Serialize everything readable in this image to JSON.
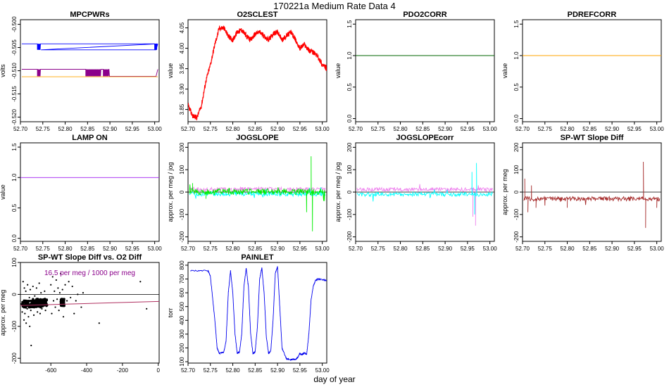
{
  "figure": {
    "title": "170221a   Medium Rate Data 4",
    "xlabel": "day of year"
  },
  "chart_data": [
    {
      "id": "mpcpwrs",
      "type": "line",
      "title": "MPCPWRs",
      "ylabel": "volts",
      "xlim": [
        52.7,
        53.01
      ],
      "ylim": [
        -0.521,
        -0.499
      ],
      "xticks": [
        52.7,
        52.75,
        52.8,
        52.85,
        52.9,
        52.95,
        53.0
      ],
      "yticks": [
        -0.52,
        -0.515,
        -0.51,
        -0.505,
        -0.5
      ],
      "ytick_labels": [
        "-0.520",
        "-0.515",
        "-0.510",
        "-0.505",
        "-0.500"
      ],
      "series": [
        {
          "color": "#0000ff",
          "base": -0.5042,
          "alt": -0.5055,
          "dips": [
            [
              52.738,
              52.745
            ],
            [
              53.0,
              53.005
            ]
          ],
          "up_end": -0.5042
        },
        {
          "color": "#8b008b",
          "base": -0.5097,
          "alt": -0.5112,
          "dips": [
            [
              52.738,
              52.745
            ],
            [
              52.846,
              52.88
            ],
            [
              52.885,
              52.898
            ]
          ],
          "up_end": -0.5097
        },
        {
          "color": "#ffa500",
          "base": -0.5113,
          "alt": -0.5113,
          "dips": [],
          "up_end": -0.5113
        }
      ]
    },
    {
      "id": "o2sclest",
      "type": "line",
      "title": "O2SCLEST",
      "ylabel": "value",
      "xlim": [
        52.7,
        53.01
      ],
      "ylim": [
        3.82,
        4.07
      ],
      "xticks": [
        52.7,
        52.75,
        52.8,
        52.85,
        52.9,
        52.95,
        53.0
      ],
      "yticks": [
        3.85,
        3.9,
        3.95,
        4.0,
        4.05
      ],
      "ytick_labels": [
        "3.85",
        "3.90",
        "3.95",
        "4.00",
        "4.05"
      ],
      "series": [
        {
          "color": "#ff0000",
          "x": [
            52.7,
            52.71,
            52.72,
            52.73,
            52.74,
            52.75,
            52.76,
            52.77,
            52.78,
            52.79,
            52.8,
            52.81,
            52.82,
            52.83,
            52.84,
            52.85,
            52.86,
            52.87,
            52.88,
            52.89,
            52.9,
            52.91,
            52.92,
            52.93,
            52.94,
            52.95,
            52.96,
            52.97,
            52.98,
            52.99,
            53.0,
            53.01
          ],
          "y": [
            3.86,
            3.835,
            3.83,
            3.86,
            3.92,
            3.96,
            4.01,
            4.05,
            4.05,
            4.03,
            4.02,
            4.04,
            4.045,
            4.03,
            4.02,
            4.035,
            4.04,
            4.03,
            4.02,
            4.035,
            4.04,
            4.02,
            4.03,
            4.04,
            4.02,
            4.0,
            4.01,
            3.995,
            3.99,
            3.98,
            3.96,
            3.95
          ]
        }
      ]
    },
    {
      "id": "pdo2corr",
      "type": "line",
      "title": "PDO2CORR",
      "ylabel": "value",
      "xlim": [
        52.7,
        53.01
      ],
      "ylim": [
        -0.05,
        1.57
      ],
      "xticks": [
        52.7,
        52.75,
        52.8,
        52.85,
        52.9,
        52.95,
        53.0
      ],
      "yticks": [
        0.0,
        0.5,
        1.0,
        1.5
      ],
      "ytick_labels": [
        "0.0",
        "0.5",
        "1.0",
        "1.5"
      ],
      "series": [
        {
          "color": "#006400",
          "x": [
            52.7,
            53.01
          ],
          "y": [
            1.0,
            1.0
          ]
        }
      ]
    },
    {
      "id": "pdrefcorr",
      "type": "line",
      "title": "PDREFCORR",
      "ylabel": "value",
      "xlim": [
        52.7,
        53.01
      ],
      "ylim": [
        -0.05,
        1.57
      ],
      "xticks": [
        52.7,
        52.75,
        52.8,
        52.85,
        52.9,
        52.95,
        53.0
      ],
      "yticks": [
        0.0,
        0.5,
        1.0,
        1.5
      ],
      "ytick_labels": [
        "0.0",
        "0.5",
        "1.0",
        "1.5"
      ],
      "series": [
        {
          "color": "#ffa500",
          "x": [
            52.7,
            53.01
          ],
          "y": [
            1.0,
            1.0
          ]
        }
      ]
    },
    {
      "id": "lampon",
      "type": "line",
      "title": "LAMP ON",
      "ylabel": "value",
      "xlim": [
        52.7,
        53.01
      ],
      "ylim": [
        -0.05,
        1.57
      ],
      "xticks": [
        52.7,
        52.75,
        52.8,
        52.85,
        52.9,
        52.95,
        53.0
      ],
      "yticks": [
        0.0,
        0.5,
        1.0,
        1.5
      ],
      "ytick_labels": [
        "0.0",
        "0.5",
        "1.0",
        "1.5"
      ],
      "series": [
        {
          "color": "#a020f0",
          "x": [
            52.7,
            53.01
          ],
          "y": [
            1.0,
            1.0
          ]
        }
      ]
    },
    {
      "id": "jogslope",
      "type": "line",
      "title": "JOGSLOPE",
      "ylabel": "approx. per meg / jog",
      "xlim": [
        52.7,
        53.01
      ],
      "ylim": [
        -220,
        220
      ],
      "xticks": [
        52.7,
        52.75,
        52.8,
        52.85,
        52.9,
        52.95,
        53.0
      ],
      "yticks": [
        -200,
        -100,
        0,
        100,
        200
      ],
      "ytick_labels": [
        "-200",
        "-100",
        "0",
        "100",
        "200"
      ],
      "zero_line": true,
      "series": [
        {
          "color": "#ee82ee",
          "level": 12,
          "spread": 10
        },
        {
          "color": "#00ffff",
          "level": -8,
          "spread": 10
        },
        {
          "color": "#00ee00",
          "level": 2,
          "spread": 14,
          "spikes": [
            [
              52.71,
              40
            ],
            [
              52.74,
              -30
            ],
            [
              52.965,
              -90
            ],
            [
              52.975,
              160
            ],
            [
              52.978,
              -175
            ],
            [
              53.005,
              -40
            ]
          ]
        }
      ]
    },
    {
      "id": "jogslopecorr",
      "type": "line",
      "title": "JOGSLOPEcorr",
      "ylabel": "approx. per meg / jog",
      "xlim": [
        52.7,
        53.01
      ],
      "ylim": [
        -220,
        220
      ],
      "xticks": [
        52.7,
        52.75,
        52.8,
        52.85,
        52.9,
        52.95,
        53.0
      ],
      "yticks": [
        -200,
        -100,
        0,
        100,
        200
      ],
      "ytick_labels": [
        "-200",
        "-100",
        "0",
        "100",
        "200"
      ],
      "zero_line": true,
      "series": [
        {
          "color": "#ee82ee",
          "level": 12,
          "spread": 8,
          "spikes": [
            [
              52.962,
              -110
            ],
            [
              52.968,
              -150
            ]
          ]
        },
        {
          "color": "#00ffff",
          "level": -10,
          "spread": 9,
          "spikes": [
            [
              52.96,
              90
            ],
            [
              52.97,
              130
            ],
            [
              52.966,
              -100
            ]
          ]
        }
      ]
    },
    {
      "id": "spwtslope",
      "type": "line",
      "title": "SP-WT Slope Diff",
      "ylabel": "approx. per meg",
      "xlim": [
        52.7,
        53.01
      ],
      "ylim": [
        -220,
        220
      ],
      "xticks": [
        52.7,
        52.75,
        52.8,
        52.85,
        52.9,
        52.95,
        53.0
      ],
      "yticks": [
        -200,
        -100,
        0,
        100,
        200
      ],
      "ytick_labels": [
        "-200",
        "-100",
        "0",
        "100",
        "200"
      ],
      "zero_line": true,
      "series": [
        {
          "color": "#a52a2a",
          "level": -30,
          "spread": 10,
          "spikes": [
            [
              52.705,
              60
            ],
            [
              52.712,
              -90
            ],
            [
              52.72,
              30
            ],
            [
              52.73,
              -70
            ],
            [
              52.75,
              -60
            ],
            [
              52.8,
              -70
            ],
            [
              52.97,
              135
            ],
            [
              52.975,
              -160
            ],
            [
              53.0,
              -70
            ]
          ]
        }
      ]
    },
    {
      "id": "spwtvso2",
      "type": "scatter",
      "title": "SP-WT Slope Diff vs. O2 Diff",
      "ylabel": "approx. per meg",
      "annotation": "16.5 per meg / 1000 per meg",
      "xlim": [
        -770,
        5
      ],
      "ylim": [
        -215,
        100
      ],
      "xticks": [
        -600,
        -400,
        -200,
        0
      ],
      "yticks": [
        -200,
        -100,
        0,
        100
      ],
      "ytick_labels": [
        "-200",
        "-100",
        "0",
        "100"
      ],
      "zero_line": true,
      "fit": {
        "color": "#b03060",
        "slope": 0.0165,
        "intercept": -22
      },
      "points": [
        [
          -765,
          -30
        ],
        [
          -760,
          -55
        ],
        [
          -755,
          40
        ],
        [
          -750,
          -80
        ],
        [
          -748,
          20
        ],
        [
          -745,
          -60
        ],
        [
          -740,
          10
        ],
        [
          -738,
          -90
        ],
        [
          -735,
          -20
        ],
        [
          -732,
          -45
        ],
        [
          -730,
          30
        ],
        [
          -725,
          -70
        ],
        [
          -720,
          -10
        ],
        [
          -718,
          -100
        ],
        [
          -715,
          15
        ],
        [
          -712,
          -50
        ],
        [
          -710,
          -160
        ],
        [
          -705,
          -35
        ],
        [
          -700,
          25
        ],
        [
          -695,
          -65
        ],
        [
          -690,
          -5
        ],
        [
          -685,
          -40
        ],
        [
          -680,
          20
        ],
        [
          -675,
          -55
        ],
        [
          -670,
          -25
        ],
        [
          -665,
          35
        ],
        [
          -660,
          -60
        ],
        [
          -655,
          5
        ],
        [
          -650,
          -45
        ],
        [
          -645,
          -15
        ],
        [
          -640,
          -30
        ],
        [
          -635,
          10
        ],
        [
          -630,
          -50
        ],
        [
          -625,
          -20
        ],
        [
          -620,
          -35
        ],
        [
          -600,
          30
        ],
        [
          -595,
          -60
        ],
        [
          -590,
          55
        ],
        [
          -585,
          -20
        ],
        [
          -580,
          10
        ],
        [
          -575,
          -40
        ],
        [
          -570,
          45
        ],
        [
          -565,
          -15
        ],
        [
          -560,
          20
        ],
        [
          -555,
          -50
        ],
        [
          -550,
          5
        ],
        [
          -545,
          65
        ],
        [
          -540,
          -30
        ],
        [
          -535,
          15
        ],
        [
          -530,
          -70
        ],
        [
          -520,
          30
        ],
        [
          -510,
          -20
        ],
        [
          -500,
          40
        ],
        [
          -490,
          -10
        ],
        [
          -480,
          25
        ],
        [
          -470,
          -60
        ],
        [
          -460,
          -20
        ],
        [
          -450,
          0
        ],
        [
          -430,
          -40
        ],
        [
          -420,
          5
        ],
        [
          -330,
          -90
        ],
        [
          -100,
          40
        ],
        [
          -65,
          -45
        ]
      ],
      "clusters": [
        [
          -760,
          -640,
          -30
        ],
        [
          -700,
          -620,
          -25
        ],
        [
          -545,
          -525,
          -25
        ]
      ]
    },
    {
      "id": "painlet",
      "type": "line",
      "title": "PAINLET",
      "ylabel": "torr",
      "xlim": [
        52.7,
        53.01
      ],
      "ylim": [
        90,
        820
      ],
      "xticks": [
        52.7,
        52.75,
        52.8,
        52.85,
        52.9,
        52.95,
        53.0
      ],
      "yticks": [
        100,
        200,
        300,
        400,
        500,
        600,
        700,
        800
      ],
      "ytick_labels": [
        "100",
        "200",
        "300",
        "400",
        "500",
        "600",
        "700",
        "800"
      ],
      "series": [
        {
          "color": "#0000ee",
          "x": [
            52.705,
            52.745,
            52.75,
            52.76,
            52.765,
            52.77,
            52.78,
            52.785,
            52.79,
            52.795,
            52.8,
            52.805,
            52.81,
            52.815,
            52.82,
            52.825,
            52.83,
            52.835,
            52.84,
            52.845,
            52.85,
            52.855,
            52.86,
            52.865,
            52.87,
            52.875,
            52.88,
            52.885,
            52.89,
            52.895,
            52.9,
            52.905,
            52.91,
            52.92,
            52.93,
            52.935,
            52.94,
            52.945,
            52.95,
            52.955,
            52.96,
            52.965,
            52.97,
            52.975,
            52.98,
            52.985,
            52.99,
            53.01
          ],
          "y": [
            760,
            760,
            720,
            400,
            200,
            160,
            170,
            250,
            600,
            760,
            600,
            300,
            160,
            170,
            300,
            650,
            780,
            640,
            300,
            160,
            170,
            350,
            700,
            780,
            600,
            280,
            160,
            180,
            400,
            740,
            790,
            500,
            200,
            120,
            115,
            118,
            115,
            130,
            160,
            150,
            165,
            150,
            300,
            550,
            650,
            690,
            700,
            690
          ]
        }
      ]
    }
  ]
}
